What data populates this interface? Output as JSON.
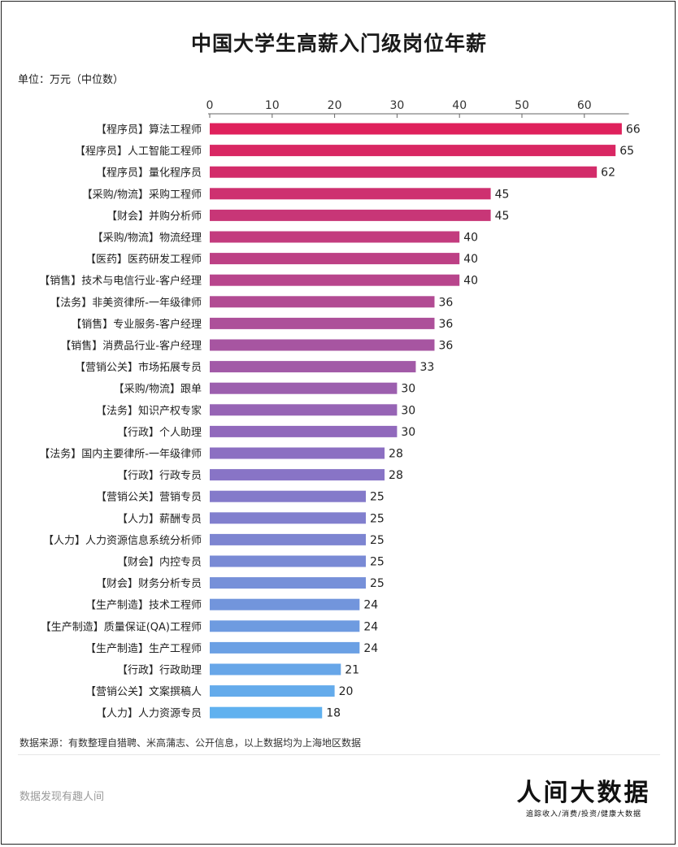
{
  "header": {
    "title": "中国大学生高薪入门级岗位年薪",
    "unit": "单位：万元（中位数）"
  },
  "chart_data": {
    "type": "bar",
    "orientation": "horizontal",
    "title": "中国大学生高薪入门级岗位年薪",
    "xlabel": "",
    "ylabel": "",
    "xlim": [
      0,
      70
    ],
    "xticks": [
      0,
      10,
      20,
      30,
      40,
      50,
      60
    ],
    "grid": false,
    "color_gradient": [
      "#e0205a",
      "#8c6ec2",
      "#5fb2f0"
    ],
    "categories": [
      "【程序员】算法工程师",
      "【程序员】人工智能工程师",
      "【程序员】量化程序员",
      "【采购/物流】采购工程师",
      "【财会】并购分析师",
      "【采购/物流】物流经理",
      "【医药】医药研发工程师",
      "【销售】技术与电信行业-客户经理",
      "【法务】非美资律所-一年级律师",
      "【销售】专业服务-客户经理",
      "【销售】消费品行业-客户经理",
      "【营销公关】市场拓展专员",
      "【采购/物流】跟单",
      "【法务】知识产权专家",
      "【行政】个人助理",
      "【法务】国内主要律所-一年级律师",
      "【行政】行政专员",
      "【营销公关】营销专员",
      "【人力】薪酬专员",
      "【人力】人力资源信息系统分析师",
      "【财会】内控专员",
      "【财会】财务分析专员",
      "【生产制造】技术工程师",
      "【生产制造】质量保证(QA)工程师",
      "【生产制造】生产工程师",
      "【行政】行政助理",
      "【营销公关】文案撰稿人",
      "【人力】人力资源专员"
    ],
    "values": [
      66,
      65,
      62,
      45,
      45,
      40,
      40,
      40,
      36,
      36,
      36,
      33,
      30,
      30,
      30,
      28,
      28,
      25,
      25,
      25,
      25,
      25,
      24,
      24,
      24,
      21,
      20,
      18
    ]
  },
  "footer": {
    "source": "数据来源：有数整理自猎聘、米高蒲志、公开信息，以上数据均为上海地区数据",
    "tagline": "数据发现有趣人间",
    "brand": "人间大数据",
    "brand_sub": "追踪收入/消费/投资/健康大数据"
  }
}
